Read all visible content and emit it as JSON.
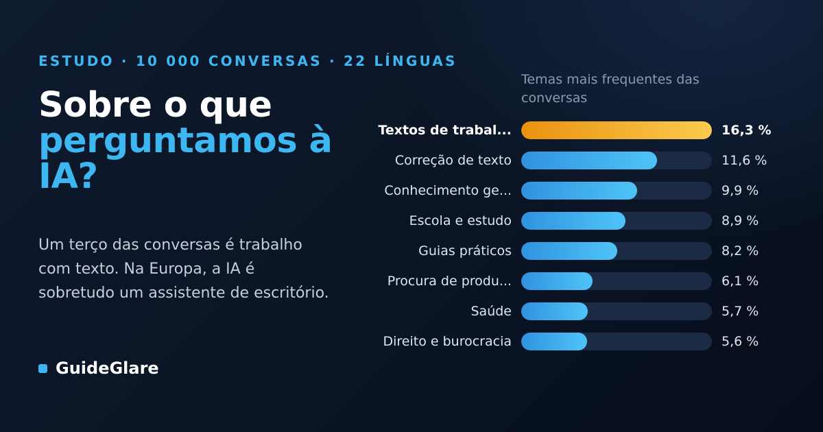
{
  "eyebrow": "ESTUDO · 10 000 CONVERSAS · 22 LÍNGUAS",
  "headline": {
    "line1": "Sobre o que",
    "accent": "perguntamos à IA?"
  },
  "subtext": "Um terço das conversas é trabalho com texto. Na Europa, a IA é sobretudo um assistente de escritório.",
  "brand": {
    "name": "GuideGlare"
  },
  "colors": {
    "accent": "#3db7f2",
    "highlight_bar": "#fccb4e",
    "bar": "#4fc4f7",
    "track": "#1b2a45"
  },
  "chart_data": {
    "type": "bar",
    "orientation": "horizontal",
    "title": "Temas mais frequentes das conversas",
    "categories": [
      "Textos de trabal...",
      "Correção de texto",
      "Conhecimento ge...",
      "Escola e estudo",
      "Guias práticos",
      "Procura de produ...",
      "Saúde",
      "Direito e burocracia"
    ],
    "values": [
      16.3,
      11.6,
      9.9,
      8.9,
      8.2,
      6.1,
      5.7,
      5.6
    ],
    "value_labels": [
      "16,3 %",
      "11,6 %",
      "9,9 %",
      "8,9 %",
      "8,2 %",
      "6,1 %",
      "5,7 %",
      "5,6 %"
    ],
    "unit": "%",
    "xlim": [
      0,
      16.3
    ],
    "highlight_index": 0,
    "grid": false,
    "legend": "none"
  }
}
